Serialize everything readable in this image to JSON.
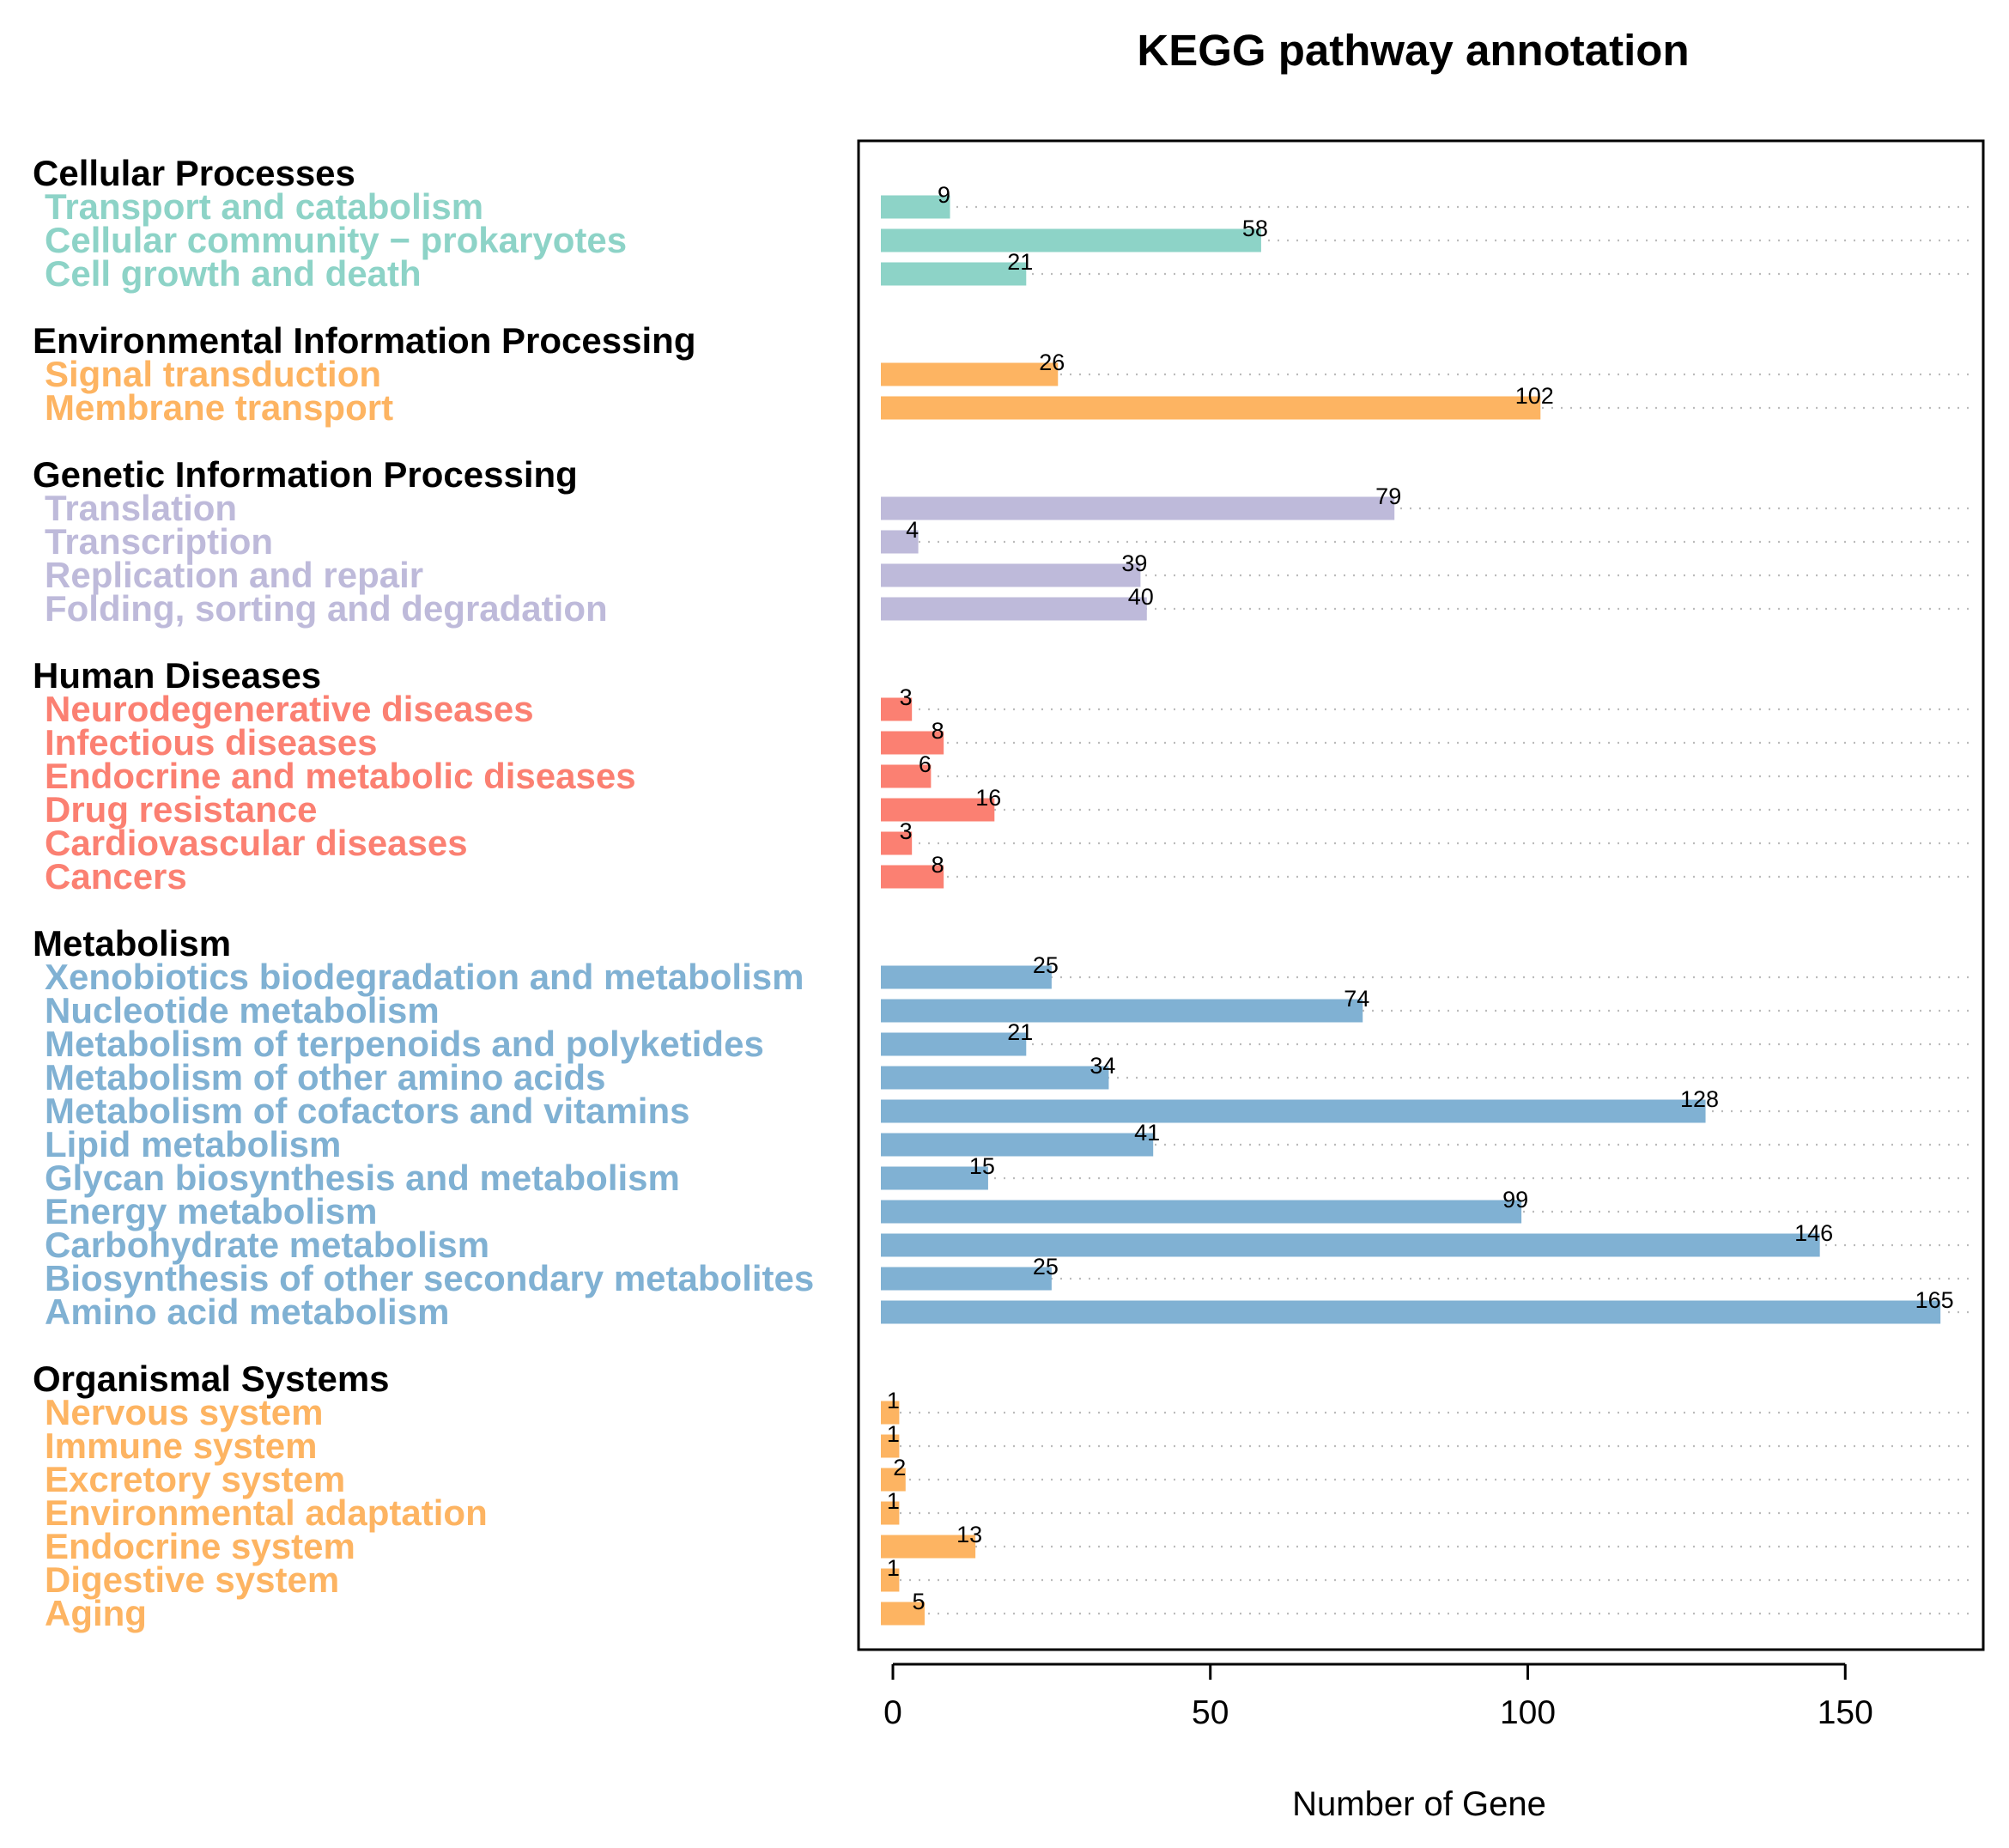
{
  "chart_data": {
    "type": "bar",
    "orientation": "horizontal",
    "title": "KEGG pathway annotation",
    "xlabel": "Number of Gene",
    "ylabel": "",
    "xlim": [
      0,
      168
    ],
    "xticks": [
      0,
      50,
      100,
      150
    ],
    "grid": true,
    "groups": [
      {
        "name": "Cellular Processes",
        "color": "#8DD3C7",
        "categories": [
          "Transport and catabolism",
          "Cellular community − prokaryotes",
          "Cell growth and death"
        ],
        "values": [
          9,
          58,
          21
        ]
      },
      {
        "name": "Environmental Information Processing",
        "color": "#FDB462",
        "categories": [
          "Signal transduction",
          "Membrane transport"
        ],
        "values": [
          26,
          102
        ]
      },
      {
        "name": "Genetic Information Processing",
        "color": "#BEBADA",
        "categories": [
          "Translation",
          "Transcription",
          "Replication and repair",
          "Folding, sorting and degradation"
        ],
        "values": [
          79,
          4,
          39,
          40
        ]
      },
      {
        "name": "Human Diseases",
        "color": "#FB8072",
        "categories": [
          "Neurodegenerative diseases",
          "Infectious diseases",
          "Endocrine and metabolic diseases",
          "Drug resistance",
          "Cardiovascular diseases",
          "Cancers"
        ],
        "values": [
          3,
          8,
          6,
          16,
          3,
          8
        ]
      },
      {
        "name": "Metabolism",
        "color": "#80B1D3",
        "categories": [
          "Xenobiotics biodegradation and metabolism",
          "Nucleotide metabolism",
          "Metabolism of terpenoids and polyketides",
          "Metabolism of other amino acids",
          "Metabolism of cofactors and vitamins",
          "Lipid metabolism",
          "Glycan biosynthesis and metabolism",
          "Energy metabolism",
          "Carbohydrate metabolism",
          "Biosynthesis of other secondary metabolites",
          "Amino acid metabolism"
        ],
        "values": [
          25,
          74,
          21,
          34,
          128,
          41,
          15,
          99,
          146,
          25,
          165
        ]
      },
      {
        "name": "Organismal Systems",
        "color": "#FDB462",
        "categories": [
          "Nervous system",
          "Immune system",
          "Excretory system",
          "Environmental adaptation",
          "Endocrine system",
          "Digestive system",
          "Aging"
        ],
        "values": [
          1,
          1,
          2,
          1,
          13,
          1,
          5
        ]
      }
    ]
  }
}
